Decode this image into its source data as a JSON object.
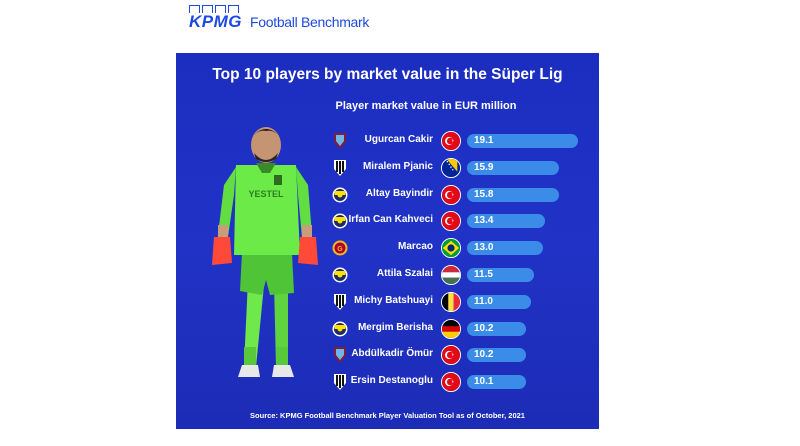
{
  "brand": {
    "logo_text": "KPMG",
    "name": "Football Benchmark"
  },
  "chart_data": {
    "type": "bar",
    "orientation": "horizontal",
    "title": "Top 10 players by market value in the Süper Lig",
    "subtitle": "Player market value in EUR million",
    "categories": [
      "Ugurcan Cakir",
      "Miralem Pjanic",
      "Altay Bayindir",
      "Irfan Can Kahveci",
      "Marcao",
      "Attila Szalai",
      "Michy Batshuayi",
      "Mergim Berisha",
      "Abdülkadir Ömür",
      "Ersin Destanoglu"
    ],
    "values": [
      19.1,
      15.9,
      15.8,
      13.4,
      13.0,
      11.5,
      11.0,
      10.2,
      10.2,
      10.1
    ],
    "value_labels": [
      "19.1",
      "15.9",
      "15.8",
      "13.4",
      "13.0",
      "11.5",
      "11.0",
      "10.2",
      "10.2",
      "10.1"
    ],
    "clubs": [
      "trabzonspor",
      "besiktas",
      "fenerbahce",
      "fenerbahce",
      "galatasaray",
      "fenerbahce",
      "besiktas",
      "fenerbahce",
      "trabzonspor",
      "besiktas"
    ],
    "flags": [
      "turkey",
      "bosnia",
      "turkey",
      "turkey",
      "brazil",
      "hungary",
      "belgium",
      "germany",
      "turkey",
      "turkey"
    ],
    "bar_color": "#3b8ce8",
    "background_color": "#1c2ec0",
    "xlim": [
      0,
      19.1
    ],
    "source": "Source: KPMG Football Benchmark Player Valuation Tool as of October, 2021"
  },
  "image": {
    "jersey_text": "YESTEL"
  }
}
